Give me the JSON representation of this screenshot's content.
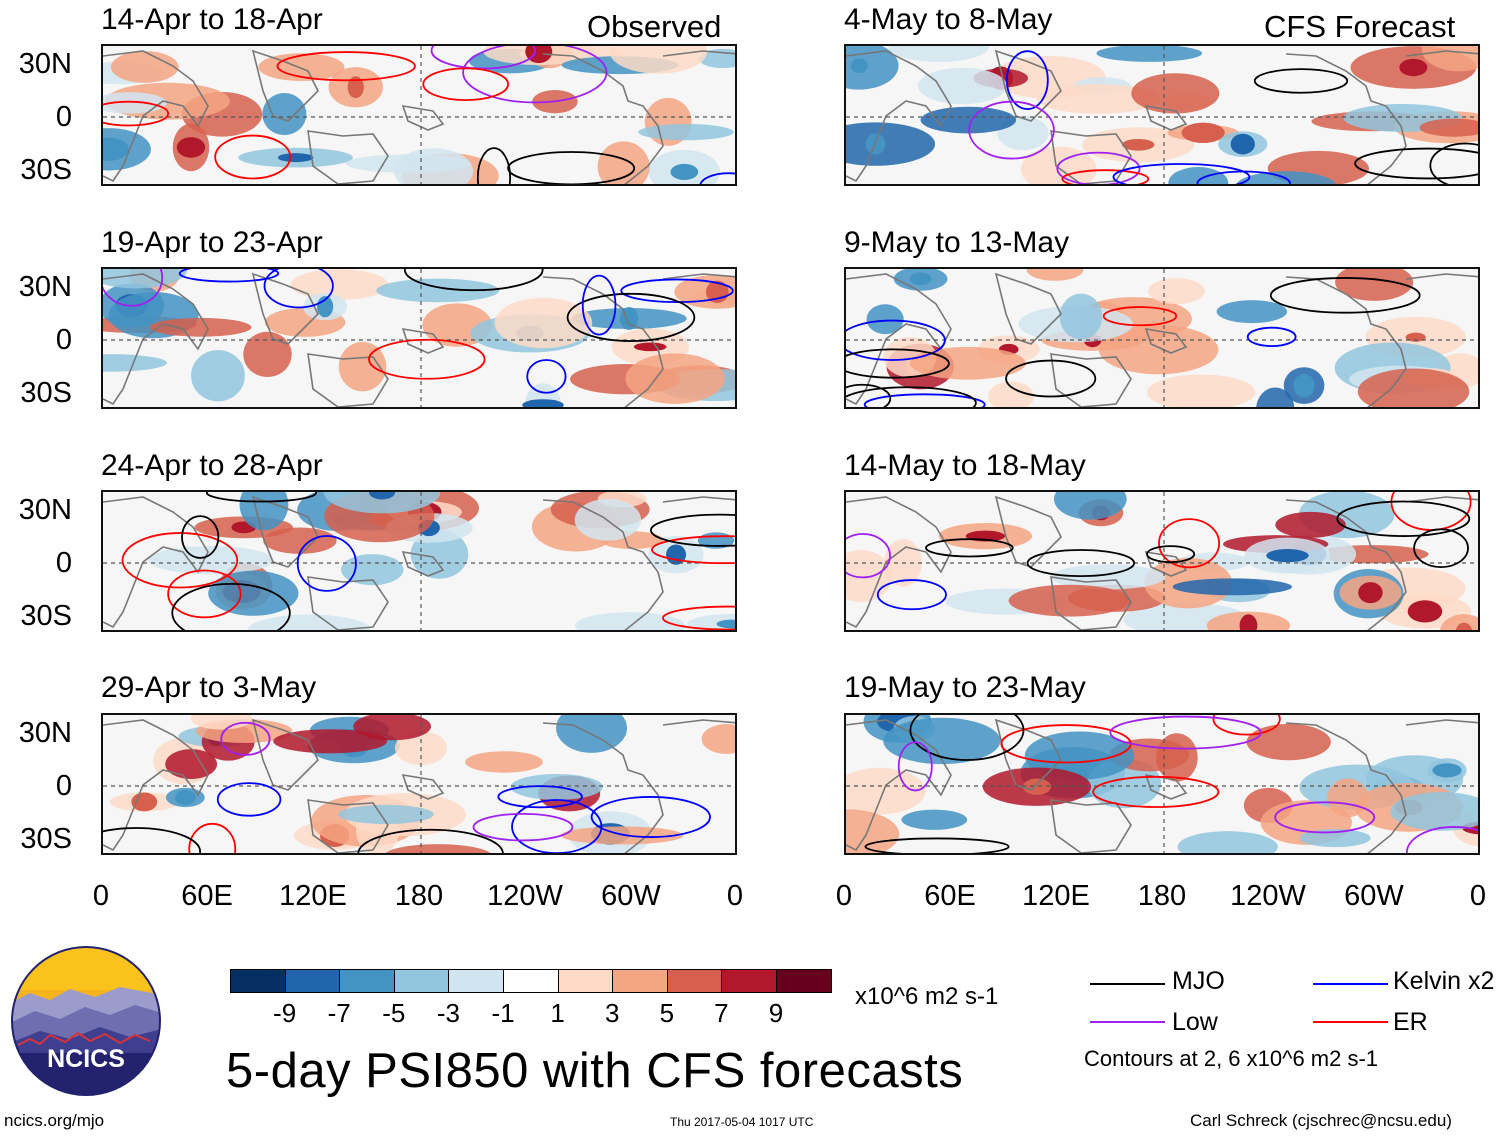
{
  "columns": {
    "observed": "Observed",
    "forecast": "CFS Forecast"
  },
  "panels": [
    {
      "title": "14-Apr to 18-Apr"
    },
    {
      "title": "19-Apr to 23-Apr"
    },
    {
      "title": "24-Apr to 28-Apr"
    },
    {
      "title": "29-Apr to 3-May"
    },
    {
      "title": "4-May to 8-May"
    },
    {
      "title": "9-May to 13-May"
    },
    {
      "title": "14-May to 18-May"
    },
    {
      "title": "19-May to 23-May"
    }
  ],
  "latitude_labels": [
    "30N",
    "0",
    "30S"
  ],
  "longitude_labels": [
    "0",
    "60E",
    "120E",
    "180",
    "120W",
    "60W",
    "0"
  ],
  "colorbar": {
    "ticks": [
      "-9",
      "-7",
      "-5",
      "-3",
      "-1",
      "1",
      "3",
      "5",
      "7",
      "9"
    ],
    "colors": [
      "#053061",
      "#2166ac",
      "#4393c3",
      "#92c5de",
      "#d1e5f0",
      "#ffffff",
      "#fddbc7",
      "#f4a582",
      "#d6604d",
      "#b2182b",
      "#67001f"
    ],
    "units": "x10^6 m2 s-1"
  },
  "title": "5-day PSI850 with CFS forecasts",
  "legend": {
    "items": [
      {
        "label": "MJO",
        "color": "#000000"
      },
      {
        "label": "Kelvin x2",
        "color": "#0000ff"
      },
      {
        "label": "Low",
        "color": "#a020f0"
      },
      {
        "label": "ER",
        "color": "#ff0000"
      }
    ],
    "contour_note": "Contours at 2, 6 x10^6 m2 s-1"
  },
  "logo": {
    "text": "NCICS"
  },
  "footer": {
    "website": "ncics.org/mjo",
    "timestamp": "Thu 2017-05-04 1017 UTC",
    "author": "Carl Schreck (cjschrec@ncsu.edu)"
  }
}
